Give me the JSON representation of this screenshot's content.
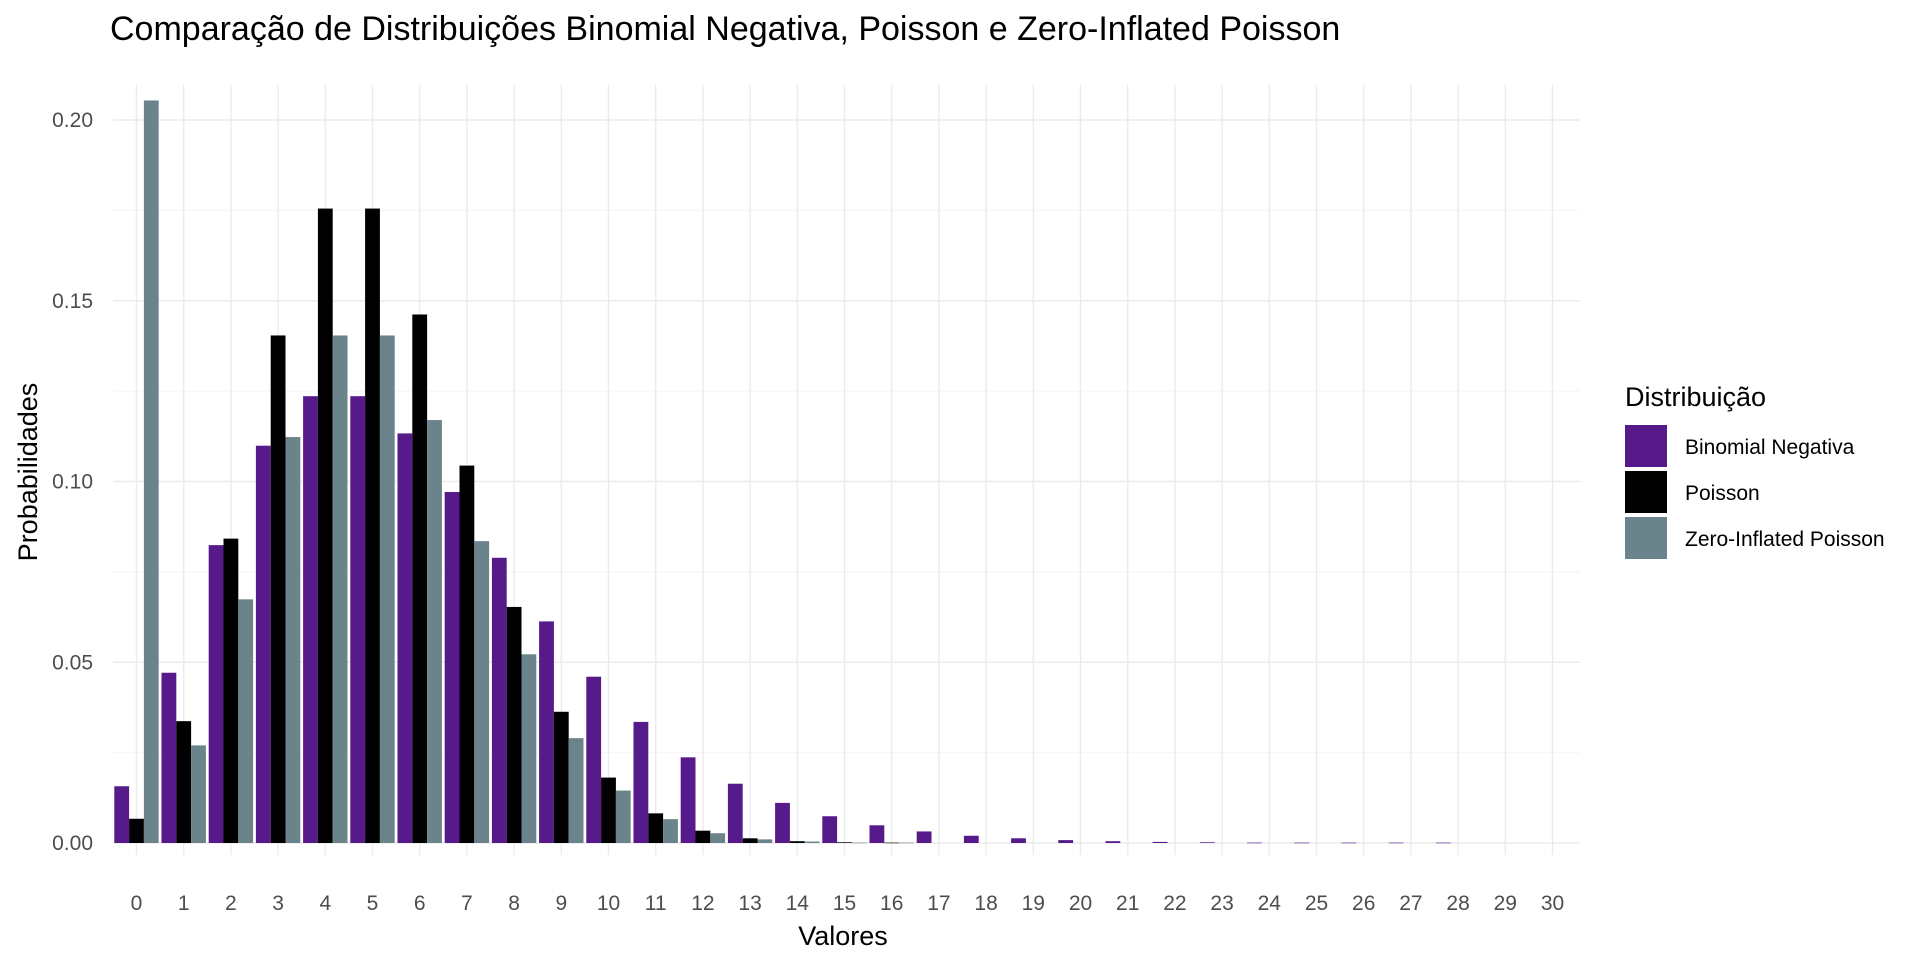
{
  "chart_data": {
    "type": "bar",
    "title": "Comparação de Distribuições Binomial Negativa, Poisson e Zero-Inflated Poisson",
    "xlabel": "Valores",
    "ylabel": "Probabilidades",
    "ylim": [
      0,
      0.21
    ],
    "y_ticks": [
      "0.00",
      "0.05",
      "0.10",
      "0.15",
      "0.20"
    ],
    "y_tick_values": [
      0,
      0.05,
      0.1,
      0.15,
      0.2
    ],
    "categories": [
      "0",
      "1",
      "2",
      "3",
      "4",
      "5",
      "6",
      "7",
      "8",
      "9",
      "10",
      "11",
      "12",
      "13",
      "14",
      "15",
      "16",
      "17",
      "18",
      "19",
      "20",
      "21",
      "22",
      "23",
      "24",
      "25",
      "26",
      "27",
      "28",
      "29",
      "30"
    ],
    "grid": true,
    "legend": {
      "title": "Distribuição",
      "position": "right"
    },
    "series": [
      {
        "name": "Binomial Negativa",
        "color": "#561a8b",
        "values": [
          0.0157,
          0.0471,
          0.0824,
          0.1099,
          0.1236,
          0.1236,
          0.1133,
          0.0971,
          0.0789,
          0.0613,
          0.046,
          0.0335,
          0.0237,
          0.0164,
          0.0111,
          0.0074,
          0.0049,
          0.0032,
          0.002,
          0.0013,
          0.0008,
          0.0005,
          0.0003,
          0.0002,
          0.0001,
          0.0001,
          0.0001,
          0.0001,
          0.0001,
          0,
          0
        ]
      },
      {
        "name": "Poisson",
        "color": "#000000",
        "values": [
          0.0067,
          0.0337,
          0.0842,
          0.1404,
          0.1755,
          0.1755,
          0.1462,
          0.1044,
          0.0653,
          0.0363,
          0.0181,
          0.0082,
          0.0034,
          0.0013,
          0.0005,
          0.0002,
          0.0001,
          0,
          0,
          0,
          0,
          0,
          0,
          0,
          0,
          0,
          0,
          0,
          0,
          0,
          0
        ]
      },
      {
        "name": "Zero-Inflated Poisson",
        "color": "#6b838b",
        "values": [
          0.2054,
          0.027,
          0.0674,
          0.1123,
          0.1404,
          0.1404,
          0.117,
          0.0835,
          0.0522,
          0.029,
          0.0145,
          0.0066,
          0.0027,
          0.001,
          0.0004,
          0.0001,
          0.0001,
          0,
          0,
          0,
          0,
          0,
          0,
          0,
          0,
          0,
          0,
          0,
          0,
          0,
          0
        ]
      }
    ]
  }
}
